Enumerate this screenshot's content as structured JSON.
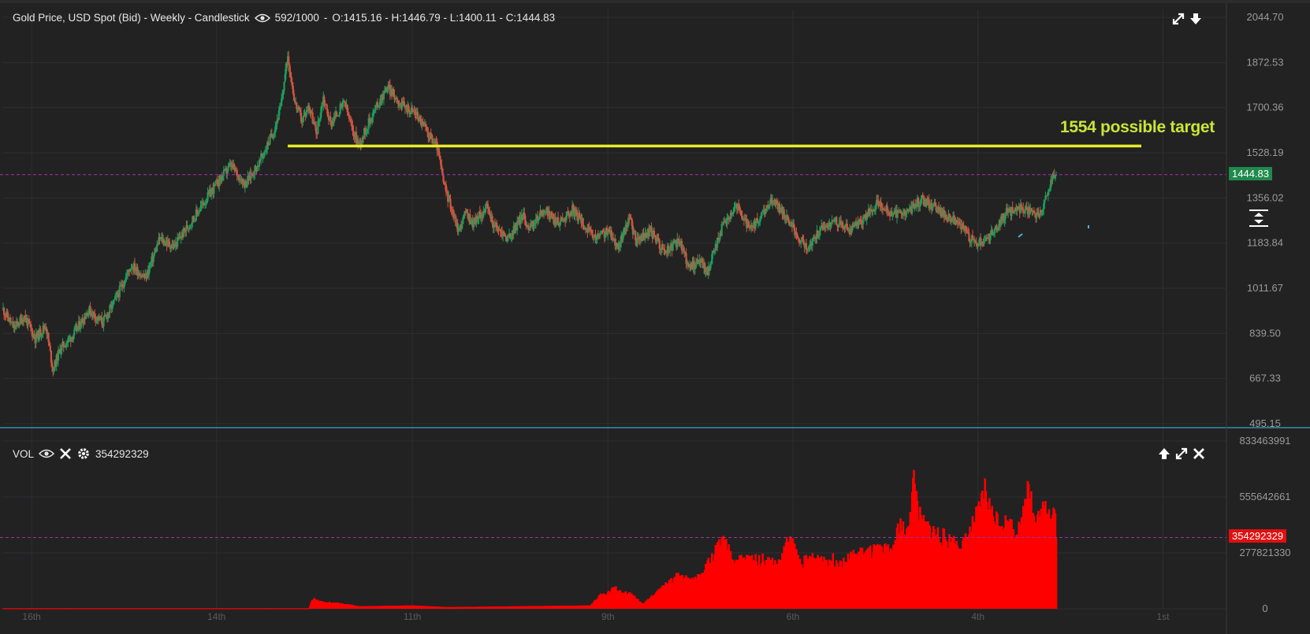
{
  "header": {
    "title": "Gold Price, USD Spot (Bid) - Weekly - Candlestick",
    "count": "592/1000",
    "ohlc": "O:1415.16 - H:1446.79 - L:1400.11 - C:1444.83"
  },
  "annotation": {
    "text": "1554 possible target",
    "price": 1554,
    "color": "#e8ec2a"
  },
  "last_price": {
    "label": "1444.83",
    "value": 1444.83,
    "color": "#1f8a4c"
  },
  "volume_panel": {
    "label": "VOL",
    "value": "354292329",
    "badge_label": "354292329",
    "badge_color": "#e01010"
  },
  "icons": [
    "eye-icon",
    "expand-icon",
    "download-icon",
    "close-icon",
    "gear-icon",
    "arrow-up-icon",
    "split-view-icon"
  ],
  "colors": {
    "up": "#1e9d5c",
    "down": "#d2553f",
    "volume": "#ff0000",
    "guide": "#a12ea8",
    "background": "#222223"
  },
  "chart_data": [
    {
      "type": "candlestick",
      "title": "Gold Price, USD Spot (Bid) - Weekly - Candlestick",
      "y_ticks": [
        "2044.70",
        "1872.53",
        "1700.36",
        "1528.19",
        "1356.02",
        "1183.84",
        "1011.67",
        "839.50",
        "667.33",
        "495.15"
      ],
      "ylim": [
        495.15,
        2044.7
      ],
      "x_tick_labels": [
        "16th",
        "14th",
        "11th",
        "9th",
        "6th",
        "4th",
        "1st"
      ],
      "grid": true,
      "close_path": [
        [
          0,
          930
        ],
        [
          3,
          860
        ],
        [
          6,
          905
        ],
        [
          9,
          820
        ],
        [
          12,
          870
        ],
        [
          14,
          700
        ],
        [
          16,
          780
        ],
        [
          20,
          840
        ],
        [
          24,
          930
        ],
        [
          28,
          880
        ],
        [
          32,
          980
        ],
        [
          36,
          1100
        ],
        [
          40,
          1050
        ],
        [
          44,
          1200
        ],
        [
          48,
          1170
        ],
        [
          52,
          1250
        ],
        [
          56,
          1330
        ],
        [
          60,
          1410
        ],
        [
          64,
          1480
        ],
        [
          68,
          1410
        ],
        [
          72,
          1490
        ],
        [
          76,
          1610
        ],
        [
          78,
          1700
        ],
        [
          80,
          1900
        ],
        [
          82,
          1720
        ],
        [
          84,
          1650
        ],
        [
          86,
          1710
        ],
        [
          88,
          1600
        ],
        [
          90,
          1740
        ],
        [
          92,
          1640
        ],
        [
          96,
          1720
        ],
        [
          98,
          1620
        ],
        [
          100,
          1560
        ],
        [
          104,
          1680
        ],
        [
          108,
          1780
        ],
        [
          112,
          1710
        ],
        [
          116,
          1680
        ],
        [
          120,
          1590
        ],
        [
          122,
          1550
        ],
        [
          124,
          1400
        ],
        [
          126,
          1320
        ],
        [
          128,
          1230
        ],
        [
          130,
          1300
        ],
        [
          132,
          1260
        ],
        [
          136,
          1320
        ],
        [
          138,
          1250
        ],
        [
          142,
          1200
        ],
        [
          146,
          1290
        ],
        [
          148,
          1240
        ],
        [
          152,
          1310
        ],
        [
          156,
          1260
        ],
        [
          160,
          1310
        ],
        [
          163,
          1260
        ],
        [
          166,
          1200
        ],
        [
          170,
          1230
        ],
        [
          173,
          1170
        ],
        [
          176,
          1280
        ],
        [
          178,
          1190
        ],
        [
          182,
          1230
        ],
        [
          186,
          1150
        ],
        [
          190,
          1190
        ],
        [
          193,
          1090
        ],
        [
          196,
          1120
        ],
        [
          198,
          1070
        ],
        [
          200,
          1160
        ],
        [
          202,
          1240
        ],
        [
          206,
          1330
        ],
        [
          210,
          1230
        ],
        [
          214,
          1300
        ],
        [
          216,
          1350
        ],
        [
          220,
          1290
        ],
        [
          222,
          1240
        ],
        [
          226,
          1160
        ],
        [
          230,
          1240
        ],
        [
          234,
          1270
        ],
        [
          238,
          1230
        ],
        [
          242,
          1280
        ],
        [
          246,
          1340
        ],
        [
          250,
          1290
        ],
        [
          254,
          1300
        ],
        [
          258,
          1350
        ],
        [
          262,
          1320
        ],
        [
          266,
          1280
        ],
        [
          270,
          1240
        ],
        [
          272,
          1200
        ],
        [
          274,
          1180
        ],
        [
          278,
          1220
        ],
        [
          282,
          1300
        ],
        [
          286,
          1320
        ],
        [
          290,
          1290
        ],
        [
          292,
          1300
        ],
        [
          294,
          1400
        ],
        [
          296,
          1444.83
        ]
      ],
      "last_close": 1444.83
    },
    {
      "type": "bar",
      "title": "VOL",
      "y_ticks": [
        "833463991",
        "555642661",
        "277821330",
        "0"
      ],
      "ylim": [
        0,
        833463991
      ],
      "current_value": 354292329,
      "volume_path": [
        [
          0,
          0.003
        ],
        [
          86,
          0.003
        ],
        [
          87,
          0.06
        ],
        [
          90,
          0.04
        ],
        [
          96,
          0.03
        ],
        [
          100,
          0.015
        ],
        [
          115,
          0.02
        ],
        [
          125,
          0.01
        ],
        [
          165,
          0.02
        ],
        [
          168,
          0.08
        ],
        [
          172,
          0.12
        ],
        [
          176,
          0.09
        ],
        [
          180,
          0.03
        ],
        [
          184,
          0.1
        ],
        [
          190,
          0.2
        ],
        [
          194,
          0.16
        ],
        [
          198,
          0.26
        ],
        [
          202,
          0.4
        ],
        [
          206,
          0.28
        ],
        [
          212,
          0.3
        ],
        [
          218,
          0.26
        ],
        [
          221,
          0.42
        ],
        [
          224,
          0.28
        ],
        [
          230,
          0.3
        ],
        [
          236,
          0.28
        ],
        [
          240,
          0.32
        ],
        [
          246,
          0.34
        ],
        [
          250,
          0.35
        ],
        [
          252,
          0.5
        ],
        [
          254,
          0.42
        ],
        [
          256,
          0.76
        ],
        [
          258,
          0.5
        ],
        [
          262,
          0.45
        ],
        [
          266,
          0.4
        ],
        [
          270,
          0.38
        ],
        [
          274,
          0.55
        ],
        [
          276,
          0.7
        ],
        [
          278,
          0.55
        ],
        [
          282,
          0.5
        ],
        [
          286,
          0.45
        ],
        [
          288,
          0.8
        ],
        [
          290,
          0.5
        ],
        [
          293,
          0.59
        ]
      ]
    }
  ]
}
